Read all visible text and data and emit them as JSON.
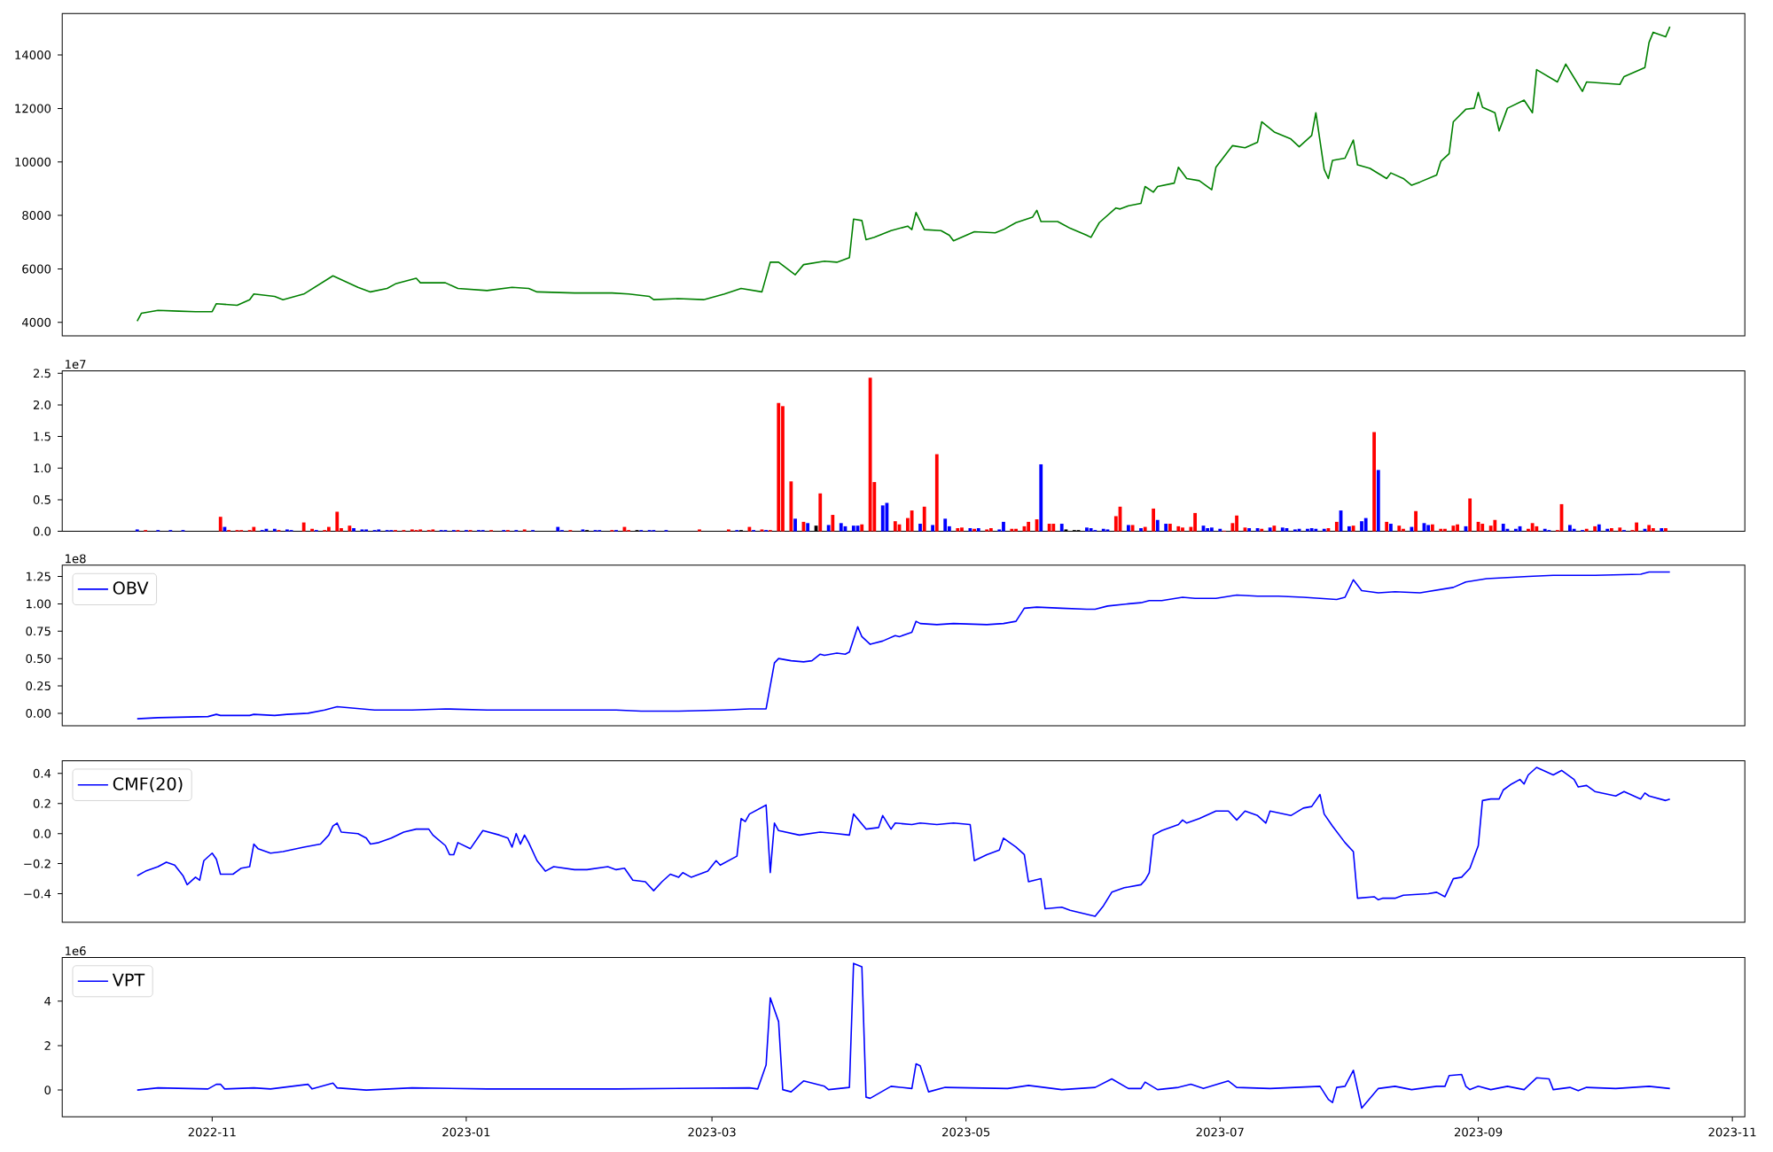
{
  "chart_data": [
    {
      "type": "line",
      "tick_labels": "y",
      "xlim": [
        "2022-09-26",
        "2023-11-04"
      ],
      "ylim": [
        3500,
        15550
      ],
      "yticks": [
        4000,
        6000,
        8000,
        10000,
        12000,
        14000
      ],
      "x": [
        "2022-10-14",
        "2022-10-15",
        "2022-10-19",
        "2022-10-24",
        "2022-10-28",
        "2022-11-01",
        "2022-11-02",
        "2022-11-07",
        "2022-11-10",
        "2022-11-11",
        "2022-11-16",
        "2022-11-18",
        "2022-11-23",
        "2022-11-30",
        "2022-12-06",
        "2022-12-09",
        "2022-12-13",
        "2022-12-15",
        "2022-12-20",
        "2022-12-21",
        "2022-12-27",
        "2022-12-30",
        "2023-01-06",
        "2023-01-12",
        "2023-01-16",
        "2023-01-18",
        "2023-01-27",
        "2023-02-05",
        "2023-02-09",
        "2023-02-14",
        "2023-02-15",
        "2023-02-21",
        "2023-02-27",
        "2023-03-04",
        "2023-03-08",
        "2023-03-13",
        "2023-03-15",
        "2023-03-17",
        "2023-03-21",
        "2023-03-23",
        "2023-03-28",
        "2023-03-31",
        "2023-04-03",
        "2023-04-04",
        "2023-04-06",
        "2023-04-07",
        "2023-04-09",
        "2023-04-13",
        "2023-04-17",
        "2023-04-18",
        "2023-04-19",
        "2023-04-21",
        "2023-04-25",
        "2023-04-27",
        "2023-04-28",
        "2023-05-03",
        "2023-05-08",
        "2023-05-10",
        "2023-05-13",
        "2023-05-17",
        "2023-05-18",
        "2023-05-19",
        "2023-05-23",
        "2023-05-26",
        "2023-05-30",
        "2023-05-31",
        "2023-06-02",
        "2023-06-06",
        "2023-06-07",
        "2023-06-09",
        "2023-06-12",
        "2023-06-13",
        "2023-06-15",
        "2023-06-16",
        "2023-06-20",
        "2023-06-21",
        "2023-06-23",
        "2023-06-26",
        "2023-06-29",
        "2023-06-30",
        "2023-07-04",
        "2023-07-07",
        "2023-07-10",
        "2023-07-11",
        "2023-07-14",
        "2023-07-18",
        "2023-07-20",
        "2023-07-23",
        "2023-07-24",
        "2023-07-26",
        "2023-07-27",
        "2023-07-28",
        "2023-07-31",
        "2023-08-02",
        "2023-08-03",
        "2023-08-06",
        "2023-08-10",
        "2023-08-11",
        "2023-08-14",
        "2023-08-16",
        "2023-08-18",
        "2023-08-22",
        "2023-08-23",
        "2023-08-25",
        "2023-08-26",
        "2023-08-29",
        "2023-08-31",
        "2023-09-01",
        "2023-09-02",
        "2023-09-05",
        "2023-09-06",
        "2023-09-08",
        "2023-09-12",
        "2023-09-14",
        "2023-09-15",
        "2023-09-20",
        "2023-09-22",
        "2023-09-26",
        "2023-09-27",
        "2023-10-05",
        "2023-10-06",
        "2023-10-11",
        "2023-10-12",
        "2023-10-13",
        "2023-10-16",
        "2023-10-17"
      ],
      "series": [
        {
          "color": "#008000",
          "values": [
            4050,
            4340,
            4450,
            4420,
            4400,
            4400,
            4700,
            4640,
            4850,
            5060,
            4970,
            4850,
            5060,
            5740,
            5310,
            5140,
            5270,
            5440,
            5650,
            5480,
            5480,
            5270,
            5190,
            5310,
            5270,
            5140,
            5100,
            5100,
            5060,
            4970,
            4850,
            4890,
            4850,
            5060,
            5270,
            5140,
            6250,
            6250,
            5780,
            6160,
            6290,
            6250,
            6420,
            7860,
            7810,
            7090,
            7180,
            7430,
            7600,
            7470,
            8110,
            7470,
            7430,
            7260,
            7050,
            7390,
            7350,
            7470,
            7730,
            7940,
            8190,
            7770,
            7770,
            7520,
            7260,
            7180,
            7730,
            8280,
            8240,
            8360,
            8450,
            9080,
            8870,
            9080,
            9210,
            9800,
            9380,
            9300,
            8960,
            9800,
            10610,
            10530,
            10740,
            11500,
            11120,
            10860,
            10570,
            10990,
            11840,
            9720,
            9380,
            10060,
            10140,
            10820,
            9890,
            9760,
            9380,
            9590,
            9380,
            9130,
            9250,
            9510,
            10020,
            10310,
            11500,
            11970,
            12010,
            12600,
            12050,
            11840,
            11160,
            12010,
            12310,
            11840,
            13450,
            12990,
            13660,
            12640,
            12990,
            12900,
            13190,
            13530,
            14470,
            14850,
            14680,
            15060
          ]
        }
      ]
    },
    {
      "type": "bar",
      "tick_labels": "y",
      "xlim": [
        "2022-09-26",
        "2023-11-04"
      ],
      "ylim": [
        0,
        2.54
      ],
      "yticks": [
        {
          "value": 0,
          "label": "0.0"
        },
        0.5,
        {
          "value": 1,
          "label": "1.0"
        },
        1.5,
        {
          "value": 2,
          "label": "2.0"
        },
        2.5
      ],
      "annotations": [
        "1e7"
      ],
      "x": [
        "2022-10-14",
        "2022-10-16",
        "2022-10-19",
        "2022-10-22",
        "2022-10-25",
        "2022-11-03",
        "2022-11-04",
        "2022-11-05",
        "2022-11-07",
        "2022-11-08",
        "2022-11-10",
        "2022-11-11",
        "2022-11-13",
        "2022-11-14",
        "2022-11-16",
        "2022-11-17",
        "2022-11-19",
        "2022-11-20",
        "2022-11-23",
        "2022-11-25",
        "2022-11-26",
        "2022-11-28",
        "2022-11-29",
        "2022-12-01",
        "2022-12-02",
        "2022-12-04",
        "2022-12-05",
        "2022-12-07",
        "2022-12-08",
        "2022-12-10",
        "2022-12-11",
        "2022-12-13",
        "2022-12-14",
        "2022-12-15",
        "2022-12-17",
        "2022-12-19",
        "2022-12-20",
        "2022-12-21",
        "2022-12-23",
        "2022-12-24",
        "2022-12-26",
        "2022-12-27",
        "2022-12-29",
        "2022-12-30",
        "2023-01-01",
        "2023-01-02",
        "2023-01-04",
        "2023-01-05",
        "2023-01-07",
        "2023-01-10",
        "2023-01-11",
        "2023-01-13",
        "2023-01-15",
        "2023-01-17",
        "2023-01-23",
        "2023-01-24",
        "2023-01-26",
        "2023-01-29",
        "2023-01-30",
        "2023-02-01",
        "2023-02-02",
        "2023-02-05",
        "2023-02-06",
        "2023-02-08",
        "2023-02-09",
        "2023-02-11",
        "2023-02-12",
        "2023-02-14",
        "2023-02-15",
        "2023-02-18",
        "2023-02-26",
        "2023-03-05",
        "2023-03-07",
        "2023-03-08",
        "2023-03-10",
        "2023-03-11",
        "2023-03-13",
        "2023-03-14",
        "2023-03-15",
        "2023-03-17",
        "2023-03-18",
        "2023-03-20",
        "2023-03-21",
        "2023-03-23",
        "2023-03-24",
        "2023-03-26",
        "2023-03-27",
        "2023-03-29",
        "2023-03-30",
        "2023-04-01",
        "2023-04-02",
        "2023-04-04",
        "2023-04-05",
        "2023-04-06",
        "2023-04-08",
        "2023-04-09",
        "2023-04-11",
        "2023-04-12",
        "2023-04-14",
        "2023-04-15",
        "2023-04-17",
        "2023-04-18",
        "2023-04-20",
        "2023-04-21",
        "2023-04-23",
        "2023-04-24",
        "2023-04-26",
        "2023-04-27",
        "2023-04-29",
        "2023-04-30",
        "2023-05-02",
        "2023-05-03",
        "2023-05-04",
        "2023-05-06",
        "2023-05-07",
        "2023-05-09",
        "2023-05-10",
        "2023-05-12",
        "2023-05-13",
        "2023-05-15",
        "2023-05-16",
        "2023-05-18",
        "2023-05-19",
        "2023-05-21",
        "2023-05-22",
        "2023-05-24",
        "2023-05-25",
        "2023-05-27",
        "2023-05-28",
        "2023-05-30",
        "2023-05-31",
        "2023-06-01",
        "2023-06-03",
        "2023-06-04",
        "2023-06-06",
        "2023-06-07",
        "2023-06-09",
        "2023-06-10",
        "2023-06-12",
        "2023-06-13",
        "2023-06-15",
        "2023-06-16",
        "2023-06-18",
        "2023-06-19",
        "2023-06-21",
        "2023-06-22",
        "2023-06-24",
        "2023-06-25",
        "2023-06-27",
        "2023-06-28",
        "2023-06-29",
        "2023-07-01",
        "2023-07-02",
        "2023-07-04",
        "2023-07-05",
        "2023-07-07",
        "2023-07-08",
        "2023-07-10",
        "2023-07-11",
        "2023-07-13",
        "2023-07-14",
        "2023-07-16",
        "2023-07-17",
        "2023-07-19",
        "2023-07-20",
        "2023-07-22",
        "2023-07-23",
        "2023-07-24",
        "2023-07-26",
        "2023-07-27",
        "2023-07-29",
        "2023-07-30",
        "2023-08-01",
        "2023-08-02",
        "2023-08-04",
        "2023-08-05",
        "2023-08-07",
        "2023-08-08",
        "2023-08-10",
        "2023-08-11",
        "2023-08-13",
        "2023-08-14",
        "2023-08-16",
        "2023-08-17",
        "2023-08-19",
        "2023-08-20",
        "2023-08-21",
        "2023-08-23",
        "2023-08-24",
        "2023-08-26",
        "2023-08-27",
        "2023-08-29",
        "2023-08-30",
        "2023-09-01",
        "2023-09-02",
        "2023-09-04",
        "2023-09-05",
        "2023-09-07",
        "2023-09-08",
        "2023-09-10",
        "2023-09-11",
        "2023-09-13",
        "2023-09-14",
        "2023-09-15",
        "2023-09-17",
        "2023-09-18",
        "2023-09-20",
        "2023-09-21",
        "2023-09-23",
        "2023-09-24",
        "2023-09-26",
        "2023-09-27",
        "2023-09-29",
        "2023-09-30",
        "2023-10-02",
        "2023-10-03",
        "2023-10-05",
        "2023-10-06",
        "2023-10-08",
        "2023-10-09",
        "2023-10-11",
        "2023-10-12",
        "2023-10-13",
        "2023-10-15",
        "2023-10-16"
      ],
      "values": [
        0.03,
        0.02,
        0.02,
        0.02,
        0.02,
        0.23,
        0.07,
        0.02,
        0.02,
        0.02,
        0.02,
        0.07,
        0.02,
        0.04,
        0.04,
        0.02,
        0.03,
        0.02,
        0.14,
        0.04,
        0.02,
        0.02,
        0.07,
        0.31,
        0.05,
        0.09,
        0.05,
        0.03,
        0.03,
        0.02,
        0.03,
        0.02,
        0.02,
        0.02,
        0.02,
        0.03,
        0.02,
        0.03,
        0.02,
        0.03,
        0.02,
        0.02,
        0.02,
        0.02,
        0.02,
        0.02,
        0.02,
        0.02,
        0.02,
        0.02,
        0.02,
        0.02,
        0.03,
        0.02,
        0.07,
        0.02,
        0.02,
        0.03,
        0.02,
        0.02,
        0.02,
        0.02,
        0.02,
        0.07,
        0.02,
        0.02,
        0.02,
        0.02,
        0.02,
        0.02,
        0.03,
        0.03,
        0.02,
        0.02,
        0.07,
        0.02,
        0.03,
        0.02,
        0.02,
        2.03,
        1.98,
        0.79,
        0.2,
        0.15,
        0.13,
        0.09,
        0.6,
        0.1,
        0.26,
        0.13,
        0.08,
        0.09,
        0.09,
        0.11,
        2.43,
        0.78,
        0.41,
        0.45,
        0.16,
        0.11,
        0.21,
        0.33,
        0.12,
        0.39,
        0.1,
        1.22,
        0.2,
        0.08,
        0.05,
        0.06,
        0.05,
        0.04,
        0.05,
        0.03,
        0.05,
        0.03,
        0.15,
        0.04,
        0.04,
        0.08,
        0.15,
        0.19,
        1.06,
        0.12,
        0.12,
        0.12,
        0.03,
        0.02,
        0.02,
        0.06,
        0.05,
        0.02,
        0.04,
        0.03,
        0.24,
        0.39,
        0.1,
        0.1,
        0.05,
        0.07,
        0.36,
        0.18,
        0.12,
        0.12,
        0.08,
        0.06,
        0.07,
        0.29,
        0.09,
        0.05,
        0.06,
        0.04,
        0.01,
        0.13,
        0.25,
        0.06,
        0.05,
        0.05,
        0.04,
        0.06,
        0.09,
        0.06,
        0.05,
        0.03,
        0.04,
        0.04,
        0.05,
        0.04,
        0.04,
        0.05,
        0.15,
        0.33,
        0.08,
        0.09,
        0.16,
        0.21,
        1.57,
        0.97,
        0.15,
        0.12,
        0.09,
        0.04,
        0.07,
        0.32,
        0.13,
        0.1,
        0.11,
        0.04,
        0.04,
        0.09,
        0.11,
        0.08,
        0.52,
        0.15,
        0.12,
        0.09,
        0.18,
        0.12,
        0.04,
        0.04,
        0.08,
        0.04,
        0.13,
        0.08,
        0.04,
        0.02,
        0.02,
        0.43,
        0.1,
        0.04,
        0.02,
        0.04,
        0.08,
        0.11,
        0.04,
        0.05,
        0.06,
        0.02,
        0.02,
        0.14,
        0.04,
        0.1,
        0.05,
        0.05,
        0.05
      ],
      "colors": [
        "#0000ff",
        "#ff0000",
        "#0000ff",
        "#0000ff",
        "#0000ff",
        "#ff0000",
        "#0000ff",
        "#ff0000",
        "#ff0000",
        "#ff0000",
        "#ff0000",
        "#ff0000",
        "#0000ff",
        "#0000ff",
        "#0000ff",
        "#ff0000",
        "#0000ff",
        "#0000ff",
        "#ff0000",
        "#ff0000",
        "#0000ff",
        "#ff0000",
        "#ff0000",
        "#ff0000",
        "#ff0000",
        "#ff0000",
        "#0000ff",
        "#0000ff",
        "#0000ff",
        "#0000ff",
        "#0000ff",
        "#0000ff",
        "#0000ff",
        "#ff0000",
        "#ff0000",
        "#ff0000",
        "#ff0000",
        "#ff0000",
        "#ff0000",
        "#ff0000",
        "#0000ff",
        "#0000ff",
        "#0000ff",
        "#ff0000",
        "#0000ff",
        "#ff0000",
        "#0000ff",
        "#0000ff",
        "#ff0000",
        "#0000ff",
        "#ff0000",
        "#0000ff",
        "#ff0000",
        "#0000ff",
        "#0000ff",
        "#0000ff",
        "#ff0000",
        "#0000ff",
        "#000000",
        "#0000ff",
        "#0000ff",
        "#ff0000",
        "#0000ff",
        "#ff0000",
        "#ff0000",
        "#000000",
        "#0000ff",
        "#0000ff",
        "#0000ff",
        "#0000ff",
        "#ff0000",
        "#ff0000",
        "#0000ff",
        "#000000",
        "#ff0000",
        "#0000ff",
        "#ff0000",
        "#0000ff",
        "#ff0000",
        "#ff0000",
        "#ff0000",
        "#ff0000",
        "#0000ff",
        "#ff0000",
        "#0000ff",
        "#000000",
        "#ff0000",
        "#0000ff",
        "#ff0000",
        "#0000ff",
        "#0000ff",
        "#0000ff",
        "#0000ff",
        "#ff0000",
        "#ff0000",
        "#ff0000",
        "#0000ff",
        "#0000ff",
        "#ff0000",
        "#ff0000",
        "#ff0000",
        "#ff0000",
        "#0000ff",
        "#ff0000",
        "#0000ff",
        "#ff0000",
        "#0000ff",
        "#0000ff",
        "#ff0000",
        "#ff0000",
        "#0000ff",
        "#ff0000",
        "#0000ff",
        "#ff0000",
        "#ff0000",
        "#0000ff",
        "#0000ff",
        "#ff0000",
        "#ff0000",
        "#ff0000",
        "#ff0000",
        "#ff0000",
        "#0000ff",
        "#ff0000",
        "#ff0000",
        "#0000ff",
        "#000000",
        "#000000",
        "#000000",
        "#0000ff",
        "#0000ff",
        "#0000ff",
        "#0000ff",
        "#0000ff",
        "#ff0000",
        "#ff0000",
        "#0000ff",
        "#ff0000",
        "#0000ff",
        "#ff0000",
        "#ff0000",
        "#0000ff",
        "#0000ff",
        "#ff0000",
        "#ff0000",
        "#ff0000",
        "#ff0000",
        "#ff0000",
        "#0000ff",
        "#0000ff",
        "#0000ff",
        "#0000ff",
        "#ff0000",
        "#ff0000",
        "#ff0000",
        "#ff0000",
        "#0000ff",
        "#0000ff",
        "#ff0000",
        "#0000ff",
        "#ff0000",
        "#0000ff",
        "#0000ff",
        "#0000ff",
        "#0000ff",
        "#0000ff",
        "#0000ff",
        "#0000ff",
        "#0000ff",
        "#ff0000",
        "#ff0000",
        "#0000ff",
        "#0000ff",
        "#ff0000",
        "#0000ff",
        "#0000ff",
        "#ff0000",
        "#0000ff",
        "#ff0000",
        "#0000ff",
        "#ff0000",
        "#ff0000",
        "#0000ff",
        "#ff0000",
        "#0000ff",
        "#0000ff",
        "#ff0000",
        "#ff0000",
        "#ff0000",
        "#ff0000",
        "#ff0000",
        "#0000ff",
        "#ff0000",
        "#ff0000",
        "#ff0000",
        "#ff0000",
        "#ff0000",
        "#0000ff",
        "#0000ff",
        "#0000ff",
        "#0000ff",
        "#ff0000",
        "#ff0000",
        "#ff0000",
        "#0000ff",
        "#0000ff",
        "#ff0000",
        "#ff0000",
        "#0000ff",
        "#0000ff",
        "#0000ff",
        "#ff0000",
        "#ff0000",
        "#0000ff",
        "#0000ff",
        "#ff0000",
        "#ff0000",
        "#0000ff",
        "#ff0000",
        "#ff0000",
        "#0000ff",
        "#ff0000",
        "#ff0000",
        "#0000ff",
        "#ff0000"
      ]
    },
    {
      "type": "line",
      "tick_labels": "y",
      "legend": "top left",
      "xlim": [
        "2022-09-26",
        "2023-11-04"
      ],
      "ylim": [
        -0.114,
        1.353
      ],
      "yticks": [
        {
          "value": 0,
          "label": "0.00"
        },
        0.25,
        {
          "value": 0.5,
          "label": "0.50"
        },
        0.75,
        {
          "value": 1,
          "label": "1.00"
        },
        1.25
      ],
      "annotations": [
        "1e8"
      ],
      "x": [
        "2022-10-14",
        "2022-10-19",
        "2022-10-31",
        "2022-11-02",
        "2022-11-03",
        "2022-11-10",
        "2022-11-11",
        "2022-11-16",
        "2022-11-19",
        "2022-11-24",
        "2022-11-28",
        "2022-12-01",
        "2022-12-04",
        "2022-12-10",
        "2022-12-19",
        "2022-12-27",
        "2023-01-06",
        "2023-01-17",
        "2023-01-27",
        "2023-02-06",
        "2023-02-12",
        "2023-02-21",
        "2023-03-04",
        "2023-03-10",
        "2023-03-14",
        "2023-03-16",
        "2023-03-17",
        "2023-03-20",
        "2023-03-23",
        "2023-03-25",
        "2023-03-27",
        "2023-03-28",
        "2023-03-31",
        "2023-04-02",
        "2023-04-03",
        "2023-04-05",
        "2023-04-06",
        "2023-04-08",
        "2023-04-11",
        "2023-04-14",
        "2023-04-15",
        "2023-04-18",
        "2023-04-19",
        "2023-04-20",
        "2023-04-24",
        "2023-04-28",
        "2023-05-06",
        "2023-05-10",
        "2023-05-13",
        "2023-05-15",
        "2023-05-18",
        "2023-05-24",
        "2023-05-30",
        "2023-06-01",
        "2023-06-04",
        "2023-06-09",
        "2023-06-12",
        "2023-06-14",
        "2023-06-17",
        "2023-06-22",
        "2023-06-25",
        "2023-06-30",
        "2023-07-05",
        "2023-07-10",
        "2023-07-15",
        "2023-07-21",
        "2023-07-25",
        "2023-07-29",
        "2023-07-31",
        "2023-08-02",
        "2023-08-04",
        "2023-08-08",
        "2023-08-12",
        "2023-08-18",
        "2023-08-26",
        "2023-08-29",
        "2023-09-03",
        "2023-09-08",
        "2023-09-13",
        "2023-09-19",
        "2023-09-29",
        "2023-10-10",
        "2023-10-12",
        "2023-10-17"
      ],
      "series": [
        {
          "name": "OBV",
          "color": "#0000ff",
          "values": [
            -0.05,
            -0.04,
            -0.03,
            -0.01,
            -0.02,
            -0.02,
            -0.01,
            -0.02,
            -0.01,
            0.0,
            0.03,
            0.06,
            0.05,
            0.03,
            0.03,
            0.04,
            0.03,
            0.03,
            0.03,
            0.03,
            0.02,
            0.02,
            0.03,
            0.04,
            0.04,
            0.46,
            0.5,
            0.48,
            0.47,
            0.48,
            0.54,
            0.53,
            0.55,
            0.54,
            0.56,
            0.79,
            0.7,
            0.63,
            0.66,
            0.71,
            0.7,
            0.74,
            0.84,
            0.82,
            0.81,
            0.82,
            0.81,
            0.82,
            0.84,
            0.96,
            0.97,
            0.96,
            0.95,
            0.95,
            0.98,
            1.0,
            1.01,
            1.03,
            1.03,
            1.06,
            1.05,
            1.05,
            1.08,
            1.07,
            1.07,
            1.06,
            1.05,
            1.04,
            1.06,
            1.22,
            1.12,
            1.1,
            1.11,
            1.1,
            1.15,
            1.2,
            1.23,
            1.24,
            1.25,
            1.26,
            1.26,
            1.27,
            1.29,
            1.29
          ]
        }
      ]
    },
    {
      "type": "line",
      "tick_labels": "y",
      "legend": "top left",
      "xlim": [
        "2022-09-26",
        "2023-11-04"
      ],
      "ylim": [
        -0.59,
        0.485
      ],
      "yticks": [
        {
          "value": -0.4,
          "label": "−0.4"
        },
        {
          "value": -0.2,
          "label": "−0.2"
        },
        {
          "value": 0,
          "label": "0.0"
        },
        0.2,
        0.4
      ],
      "x": [
        "2022-10-14",
        "2022-10-16",
        "2022-10-19",
        "2022-10-21",
        "2022-10-23",
        "2022-10-25",
        "2022-10-26",
        "2022-10-28",
        "2022-10-29",
        "2022-10-30",
        "2022-11-01",
        "2022-11-02",
        "2022-11-03",
        "2022-11-06",
        "2022-11-08",
        "2022-11-10",
        "2022-11-11",
        "2022-11-12",
        "2022-11-15",
        "2022-11-18",
        "2022-11-23",
        "2022-11-27",
        "2022-11-29",
        "2022-11-30",
        "2022-12-01",
        "2022-12-02",
        "2022-12-06",
        "2022-12-08",
        "2022-12-09",
        "2022-12-11",
        "2022-12-14",
        "2022-12-17",
        "2022-12-20",
        "2022-12-23",
        "2022-12-24",
        "2022-12-27",
        "2022-12-28",
        "2022-12-29",
        "2022-12-30",
        "2023-01-02",
        "2023-01-05",
        "2023-01-09",
        "2023-01-11",
        "2023-01-12",
        "2023-01-13",
        "2023-01-14",
        "2023-01-15",
        "2023-01-16",
        "2023-01-18",
        "2023-01-20",
        "2023-01-22",
        "2023-01-27",
        "2023-01-30",
        "2023-02-04",
        "2023-02-06",
        "2023-02-08",
        "2023-02-10",
        "2023-02-13",
        "2023-02-15",
        "2023-02-17",
        "2023-02-19",
        "2023-02-21",
        "2023-02-22",
        "2023-02-24",
        "2023-02-28",
        "2023-03-02",
        "2023-03-03",
        "2023-03-07",
        "2023-03-08",
        "2023-03-09",
        "2023-03-10",
        "2023-03-14",
        "2023-03-15",
        "2023-03-16",
        "2023-03-17",
        "2023-03-22",
        "2023-03-27",
        "2023-03-31",
        "2023-04-03",
        "2023-04-04",
        "2023-04-07",
        "2023-04-10",
        "2023-04-11",
        "2023-04-13",
        "2023-04-14",
        "2023-04-18",
        "2023-04-20",
        "2023-04-24",
        "2023-04-28",
        "2023-05-02",
        "2023-05-03",
        "2023-05-06",
        "2023-05-09",
        "2023-05-10",
        "2023-05-13",
        "2023-05-15",
        "2023-05-16",
        "2023-05-19",
        "2023-05-20",
        "2023-05-24",
        "2023-05-26",
        "2023-06-01",
        "2023-06-03",
        "2023-06-05",
        "2023-06-08",
        "2023-06-12",
        "2023-06-13",
        "2023-06-14",
        "2023-06-15",
        "2023-06-17",
        "2023-06-21",
        "2023-06-22",
        "2023-06-23",
        "2023-06-26",
        "2023-06-30",
        "2023-07-03",
        "2023-07-05",
        "2023-07-07",
        "2023-07-10",
        "2023-07-12",
        "2023-07-13",
        "2023-07-18",
        "2023-07-21",
        "2023-07-23",
        "2023-07-25",
        "2023-07-26",
        "2023-07-28",
        "2023-07-31",
        "2023-08-02",
        "2023-08-03",
        "2023-08-07",
        "2023-08-08",
        "2023-08-09",
        "2023-08-12",
        "2023-08-14",
        "2023-08-20",
        "2023-08-22",
        "2023-08-24",
        "2023-08-26",
        "2023-08-28",
        "2023-08-30",
        "2023-09-01",
        "2023-09-02",
        "2023-09-04",
        "2023-09-06",
        "2023-09-07",
        "2023-09-09",
        "2023-09-11",
        "2023-09-12",
        "2023-09-13",
        "2023-09-15",
        "2023-09-19",
        "2023-09-21",
        "2023-09-24",
        "2023-09-25",
        "2023-09-27",
        "2023-09-29",
        "2023-10-04",
        "2023-10-06",
        "2023-10-10",
        "2023-10-11",
        "2023-10-12",
        "2023-10-16",
        "2023-10-17"
      ],
      "series": [
        {
          "name": "CMF(20)",
          "color": "#0000ff",
          "values": [
            -0.28,
            -0.25,
            -0.22,
            -0.19,
            -0.21,
            -0.28,
            -0.34,
            -0.29,
            -0.31,
            -0.18,
            -0.13,
            -0.17,
            -0.27,
            -0.27,
            -0.23,
            -0.22,
            -0.07,
            -0.1,
            -0.13,
            -0.12,
            -0.09,
            -0.07,
            -0.01,
            0.05,
            0.07,
            0.01,
            0.0,
            -0.03,
            -0.07,
            -0.06,
            -0.03,
            0.01,
            0.03,
            0.03,
            -0.01,
            -0.08,
            -0.14,
            -0.14,
            -0.06,
            -0.1,
            0.02,
            -0.01,
            -0.03,
            -0.09,
            0.0,
            -0.07,
            -0.01,
            -0.06,
            -0.18,
            -0.25,
            -0.22,
            -0.24,
            -0.24,
            -0.22,
            -0.24,
            -0.23,
            -0.31,
            -0.32,
            -0.38,
            -0.32,
            -0.27,
            -0.29,
            -0.26,
            -0.29,
            -0.25,
            -0.18,
            -0.21,
            -0.15,
            0.1,
            0.08,
            0.13,
            0.19,
            -0.26,
            0.07,
            0.02,
            -0.01,
            0.01,
            0.0,
            -0.01,
            0.13,
            0.03,
            0.04,
            0.12,
            0.03,
            0.07,
            0.06,
            0.07,
            0.06,
            0.07,
            0.06,
            -0.18,
            -0.14,
            -0.11,
            -0.03,
            -0.09,
            -0.14,
            -0.32,
            -0.3,
            -0.5,
            -0.49,
            -0.51,
            -0.55,
            -0.48,
            -0.39,
            -0.36,
            -0.34,
            -0.31,
            -0.26,
            -0.01,
            0.02,
            0.06,
            0.09,
            0.07,
            0.1,
            0.15,
            0.15,
            0.09,
            0.15,
            0.12,
            0.07,
            0.15,
            0.12,
            0.17,
            0.18,
            0.26,
            0.13,
            0.05,
            -0.06,
            -0.12,
            -0.43,
            -0.42,
            -0.44,
            -0.43,
            -0.43,
            -0.41,
            -0.4,
            -0.39,
            -0.42,
            -0.3,
            -0.29,
            -0.23,
            -0.08,
            0.22,
            0.23,
            0.23,
            0.29,
            0.33,
            0.36,
            0.33,
            0.39,
            0.44,
            0.39,
            0.42,
            0.36,
            0.31,
            0.32,
            0.28,
            0.25,
            0.28,
            0.23,
            0.27,
            0.25,
            0.22,
            0.23
          ]
        }
      ]
    },
    {
      "type": "line",
      "legend": "top left",
      "xlim": [
        "2022-09-26",
        "2023-11-04"
      ],
      "ylim": [
        -1.2,
        5.97
      ],
      "yticks": [
        0,
        2,
        4
      ],
      "xticks": [
        {
          "value": "2022-11-01",
          "label": "2022-11"
        },
        {
          "value": "2023-01-01",
          "label": "2023-01"
        },
        {
          "value": "2023-03-01",
          "label": "2023-03"
        },
        {
          "value": "2023-05-01",
          "label": "2023-05"
        },
        {
          "value": "2023-07-01",
          "label": "2023-07"
        },
        {
          "value": "2023-09-01",
          "label": "2023-09"
        },
        {
          "value": "2023-11-01",
          "label": "2023-11"
        }
      ],
      "annotations": [
        "1e6"
      ],
      "x": [
        "2022-10-14",
        "2022-10-19",
        "2022-10-31",
        "2022-11-02",
        "2022-11-03",
        "2022-11-04",
        "2022-11-11",
        "2022-11-15",
        "2022-11-24",
        "2022-11-25",
        "2022-11-30",
        "2022-12-01",
        "2022-12-08",
        "2022-12-19",
        "2023-01-06",
        "2023-02-06",
        "2023-03-10",
        "2023-03-12",
        "2023-03-14",
        "2023-03-15",
        "2023-03-17",
        "2023-03-18",
        "2023-03-20",
        "2023-03-23",
        "2023-03-28",
        "2023-03-29",
        "2023-04-03",
        "2023-04-04",
        "2023-04-06",
        "2023-04-07",
        "2023-04-08",
        "2023-04-13",
        "2023-04-18",
        "2023-04-19",
        "2023-04-20",
        "2023-04-22",
        "2023-04-26",
        "2023-05-11",
        "2023-05-16",
        "2023-05-24",
        "2023-06-01",
        "2023-06-05",
        "2023-06-09",
        "2023-06-12",
        "2023-06-13",
        "2023-06-16",
        "2023-06-21",
        "2023-06-24",
        "2023-06-27",
        "2023-07-03",
        "2023-07-05",
        "2023-07-13",
        "2023-07-25",
        "2023-07-27",
        "2023-07-28",
        "2023-07-29",
        "2023-07-31",
        "2023-08-02",
        "2023-08-04",
        "2023-08-08",
        "2023-08-12",
        "2023-08-16",
        "2023-08-22",
        "2023-08-24",
        "2023-08-25",
        "2023-08-28",
        "2023-08-29",
        "2023-08-30",
        "2023-09-01",
        "2023-09-04",
        "2023-09-08",
        "2023-09-12",
        "2023-09-15",
        "2023-09-18",
        "2023-09-19",
        "2023-09-23",
        "2023-09-25",
        "2023-09-27",
        "2023-10-04",
        "2023-10-12",
        "2023-10-17"
      ],
      "series": [
        {
          "name": "VPT",
          "color": "#0000ff",
          "values": [
            0,
            0.1,
            0.05,
            0.26,
            0.26,
            0.05,
            0.1,
            0.05,
            0.26,
            0.05,
            0.31,
            0.1,
            0,
            0.1,
            0.05,
            0.05,
            0.1,
            0.05,
            1.13,
            4.15,
            3.08,
            0.02,
            -0.08,
            0.41,
            0.17,
            0.02,
            0.12,
            5.7,
            5.55,
            -0.32,
            -0.37,
            0.17,
            0.07,
            1.18,
            1.09,
            -0.08,
            0.12,
            0.07,
            0.21,
            0.02,
            0.12,
            0.5,
            0.07,
            0.07,
            0.36,
            0.02,
            0.12,
            0.26,
            0.07,
            0.41,
            0.12,
            0.07,
            0.17,
            -0.42,
            -0.56,
            0.12,
            0.17,
            0.89,
            -0.81,
            0.07,
            0.17,
            0.02,
            0.17,
            0.17,
            0.65,
            0.7,
            0.17,
            0.02,
            0.17,
            0.02,
            0.17,
            0.02,
            0.55,
            0.5,
            0.02,
            0.12,
            -0.03,
            0.12,
            0.07,
            0.17,
            0.07
          ]
        }
      ]
    }
  ]
}
